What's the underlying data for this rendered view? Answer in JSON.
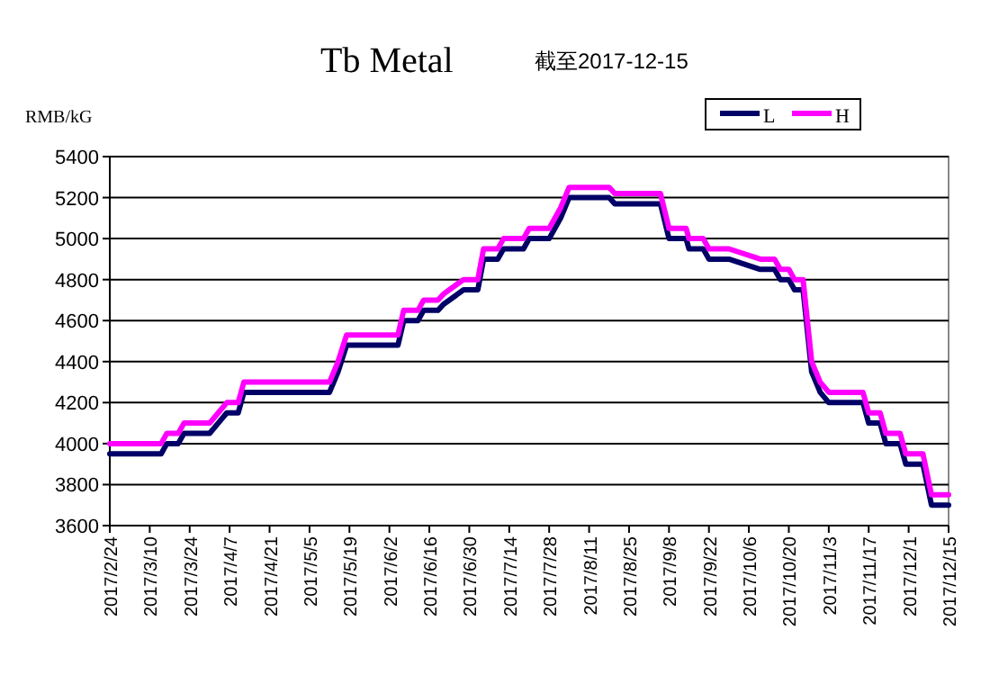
{
  "chart_data": {
    "type": "line",
    "title": "Tb Metal",
    "subtitle": "截至2017-12-15",
    "ylabel": "RMB/kG",
    "x": [
      "2017-02-24",
      "2017-03-14",
      "2017-03-16",
      "2017-03-20",
      "2017-03-22",
      "2017-03-31",
      "2017-04-03",
      "2017-04-06",
      "2017-04-10",
      "2017-04-12",
      "2017-05-12",
      "2017-05-15",
      "2017-05-18",
      "2017-06-05",
      "2017-06-07",
      "2017-06-12",
      "2017-06-14",
      "2017-06-19",
      "2017-06-21",
      "2017-06-23",
      "2017-06-28",
      "2017-07-03",
      "2017-07-05",
      "2017-07-10",
      "2017-07-12",
      "2017-07-19",
      "2017-07-21",
      "2017-07-28",
      "2017-08-01",
      "2017-08-04",
      "2017-08-18",
      "2017-08-20",
      "2017-09-05",
      "2017-09-08",
      "2017-09-14",
      "2017-09-15",
      "2017-09-20",
      "2017-09-22",
      "2017-09-29",
      "2017-10-10",
      "2017-10-15",
      "2017-10-17",
      "2017-10-20",
      "2017-10-22",
      "2017-10-25",
      "2017-10-28",
      "2017-10-31",
      "2017-11-03",
      "2017-11-15",
      "2017-11-17",
      "2017-11-21",
      "2017-11-23",
      "2017-11-28",
      "2017-11-30",
      "2017-12-06",
      "2017-12-09",
      "2017-12-15"
    ],
    "series": [
      {
        "name": "L",
        "color": "#000066",
        "values": [
          3950,
          3950,
          4000,
          4000,
          4050,
          4050,
          4100,
          4150,
          4150,
          4250,
          4250,
          4350,
          4480,
          4480,
          4600,
          4600,
          4650,
          4650,
          4680,
          4700,
          4750,
          4750,
          4900,
          4900,
          4950,
          4950,
          5000,
          5000,
          5100,
          5200,
          5200,
          5170,
          5170,
          5000,
          5000,
          4950,
          4950,
          4900,
          4900,
          4850,
          4850,
          4800,
          4800,
          4750,
          4750,
          4350,
          4250,
          4200,
          4200,
          4100,
          4100,
          4000,
          4000,
          3900,
          3900,
          3700,
          3700
        ]
      },
      {
        "name": "H",
        "color": "#ff00ff",
        "values": [
          4000,
          4000,
          4050,
          4050,
          4100,
          4100,
          4150,
          4200,
          4200,
          4300,
          4300,
          4400,
          4530,
          4530,
          4650,
          4650,
          4700,
          4700,
          4730,
          4750,
          4800,
          4800,
          4950,
          4950,
          5000,
          5000,
          5050,
          5050,
          5150,
          5250,
          5250,
          5220,
          5220,
          5050,
          5050,
          5000,
          5000,
          4950,
          4950,
          4900,
          4900,
          4850,
          4850,
          4800,
          4800,
          4400,
          4300,
          4250,
          4250,
          4150,
          4150,
          4050,
          4050,
          3950,
          3950,
          3750,
          3750
        ]
      }
    ],
    "xlim": [
      "2017-02-24",
      "2017-12-15"
    ],
    "xticks": [
      {
        "value": "2017-02-24",
        "label": "2017/2/24"
      },
      {
        "value": "2017-03-10",
        "label": "2017/3/10"
      },
      {
        "value": "2017-03-24",
        "label": "2017/3/24"
      },
      {
        "value": "2017-04-07",
        "label": "2017/4/7"
      },
      {
        "value": "2017-04-21",
        "label": "2017/4/21"
      },
      {
        "value": "2017-05-05",
        "label": "2017/5/5"
      },
      {
        "value": "2017-05-19",
        "label": "2017/5/19"
      },
      {
        "value": "2017-06-02",
        "label": "2017/6/2"
      },
      {
        "value": "2017-06-16",
        "label": "2017/6/16"
      },
      {
        "value": "2017-06-30",
        "label": "2017/6/30"
      },
      {
        "value": "2017-07-14",
        "label": "2017/7/14"
      },
      {
        "value": "2017-07-28",
        "label": "2017/7/28"
      },
      {
        "value": "2017-08-11",
        "label": "2017/8/11"
      },
      {
        "value": "2017-08-25",
        "label": "2017/8/25"
      },
      {
        "value": "2017-09-08",
        "label": "2017/9/8"
      },
      {
        "value": "2017-09-22",
        "label": "2017/9/22"
      },
      {
        "value": "2017-10-06",
        "label": "2017/10/6"
      },
      {
        "value": "2017-10-20",
        "label": "2017/10/20"
      },
      {
        "value": "2017-11-03",
        "label": "2017/11/3"
      },
      {
        "value": "2017-11-17",
        "label": "2017/11/17"
      },
      {
        "value": "2017-12-01",
        "label": "2017/12/1"
      },
      {
        "value": "2017-12-15",
        "label": "2017/12/15"
      }
    ],
    "ylim": [
      3600,
      5400
    ],
    "yticks": [
      3600,
      3800,
      4000,
      4200,
      4400,
      4600,
      4800,
      5000,
      5200,
      5400
    ],
    "grid": "y",
    "legend": "top right",
    "line_style": "solid"
  }
}
